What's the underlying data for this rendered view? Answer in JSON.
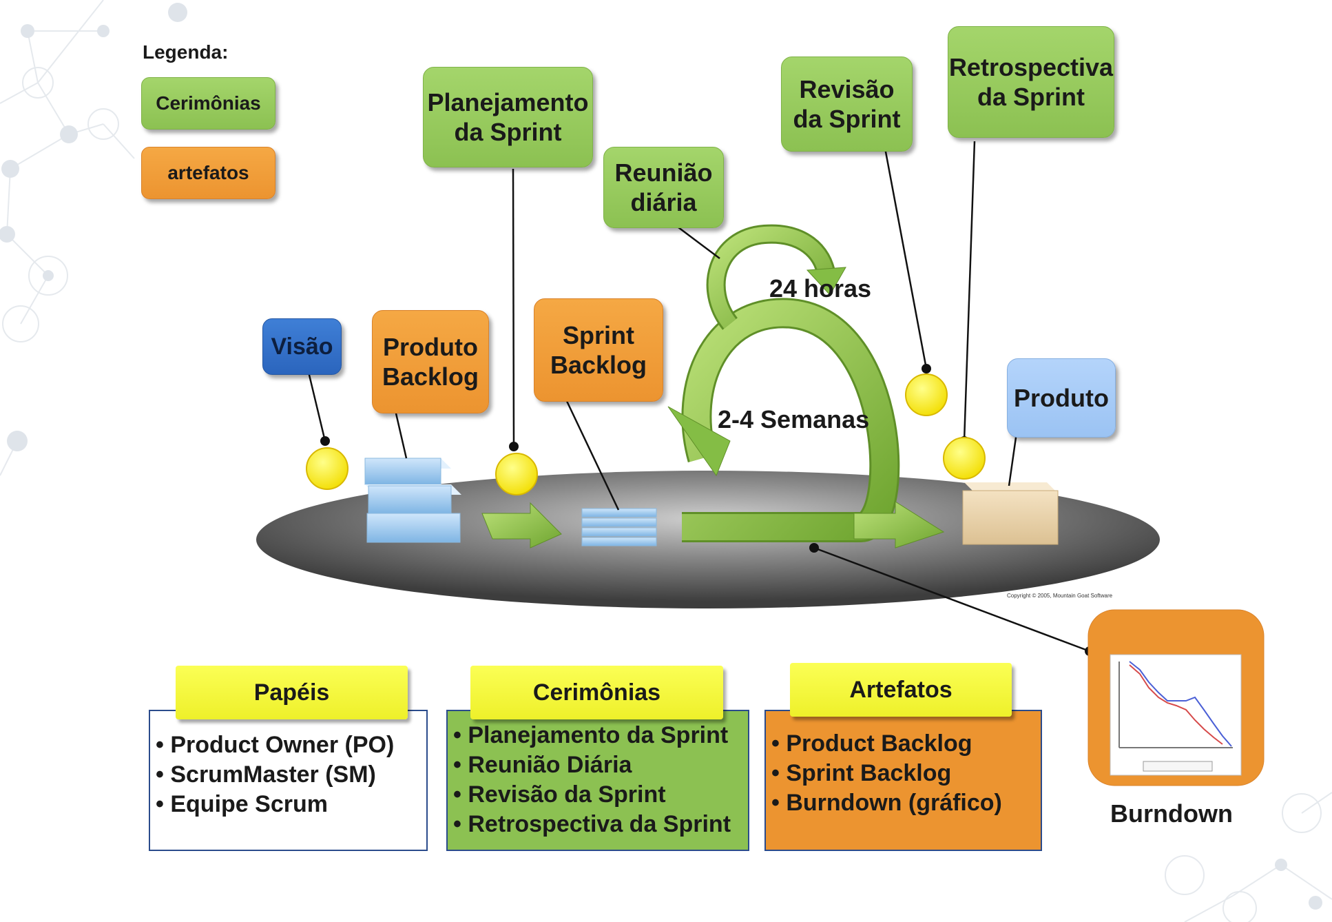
{
  "legend": {
    "title": "Legenda:",
    "ceremonies_label": "Cerimônias",
    "artifacts_label": "artefatos"
  },
  "nodes": {
    "visao": "Visão",
    "produto_backlog": "Produto\nBacklog",
    "planejamento": "Planejamento\nda Sprint",
    "sprint_backlog": "Sprint\nBacklog",
    "reuniao": "Reunião\ndiária",
    "revisao": "Revisão\nda Sprint",
    "retrospectiva": "Retrospectiva\nda Sprint",
    "produto": "Produto",
    "burndown_caption": "Burndown"
  },
  "cycle_labels": {
    "daily": "24 horas",
    "sprint": "2-4 Semanas"
  },
  "copyright": "Copyright © 2005, Mountain Goat Software",
  "panels": {
    "papeis": {
      "title": "Papéis",
      "items": [
        "Product Owner (PO)",
        "ScrumMaster (SM)",
        "Equipe Scrum"
      ]
    },
    "cerimonias": {
      "title": "Cerimônias",
      "items": [
        "Planejamento da Sprint",
        "Reunião Diária",
        "Revisão da Sprint",
        "Retrospectiva da Sprint"
      ]
    },
    "artefatos": {
      "title": "Artefatos",
      "items": [
        "Product Backlog",
        "Sprint Backlog",
        "Burndown (gráfico)"
      ]
    }
  },
  "colors": {
    "ceremony": "#8cc152",
    "artifact": "#ec9430",
    "vision": "#2b65bd",
    "product": "#9bc3f3",
    "header": "#f4f63a",
    "platform": "#555555"
  }
}
